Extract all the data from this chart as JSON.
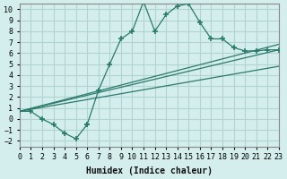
{
  "xlabel": "Humidex (Indice chaleur)",
  "background_color": "#d4eeed",
  "grid_color": "#b0d4d0",
  "line_color": "#2a7a6a",
  "xlim": [
    0,
    23
  ],
  "ylim": [
    -2.5,
    10.5
  ],
  "xticks": [
    0,
    1,
    2,
    3,
    4,
    5,
    6,
    7,
    8,
    9,
    10,
    11,
    12,
    13,
    14,
    15,
    16,
    17,
    18,
    19,
    20,
    21,
    22,
    23
  ],
  "yticks": [
    -2,
    -1,
    0,
    1,
    2,
    3,
    4,
    5,
    6,
    7,
    8,
    9,
    10
  ],
  "main_x": [
    0,
    1,
    2,
    3,
    4,
    5,
    6,
    6,
    7,
    8,
    9,
    10,
    11,
    12,
    13,
    14,
    15,
    16,
    17,
    18,
    19,
    20,
    21,
    22,
    23
  ],
  "main_y": [
    0.7,
    0.7,
    0.0,
    -0.5,
    -1.3,
    -1.8,
    -0.5,
    -0.5,
    2.6,
    5.0,
    7.3,
    8.0,
    10.7,
    8.0,
    9.5,
    10.3,
    10.5,
    8.8,
    7.3,
    7.3,
    6.5,
    6.2,
    6.2,
    6.3,
    6.3
  ],
  "line1_x": [
    0,
    23
  ],
  "line1_y": [
    0.7,
    6.3
  ],
  "line2_x": [
    0,
    23
  ],
  "line2_y": [
    0.7,
    4.8
  ],
  "line3_x": [
    0,
    23
  ],
  "line3_y": [
    0.7,
    6.8
  ]
}
